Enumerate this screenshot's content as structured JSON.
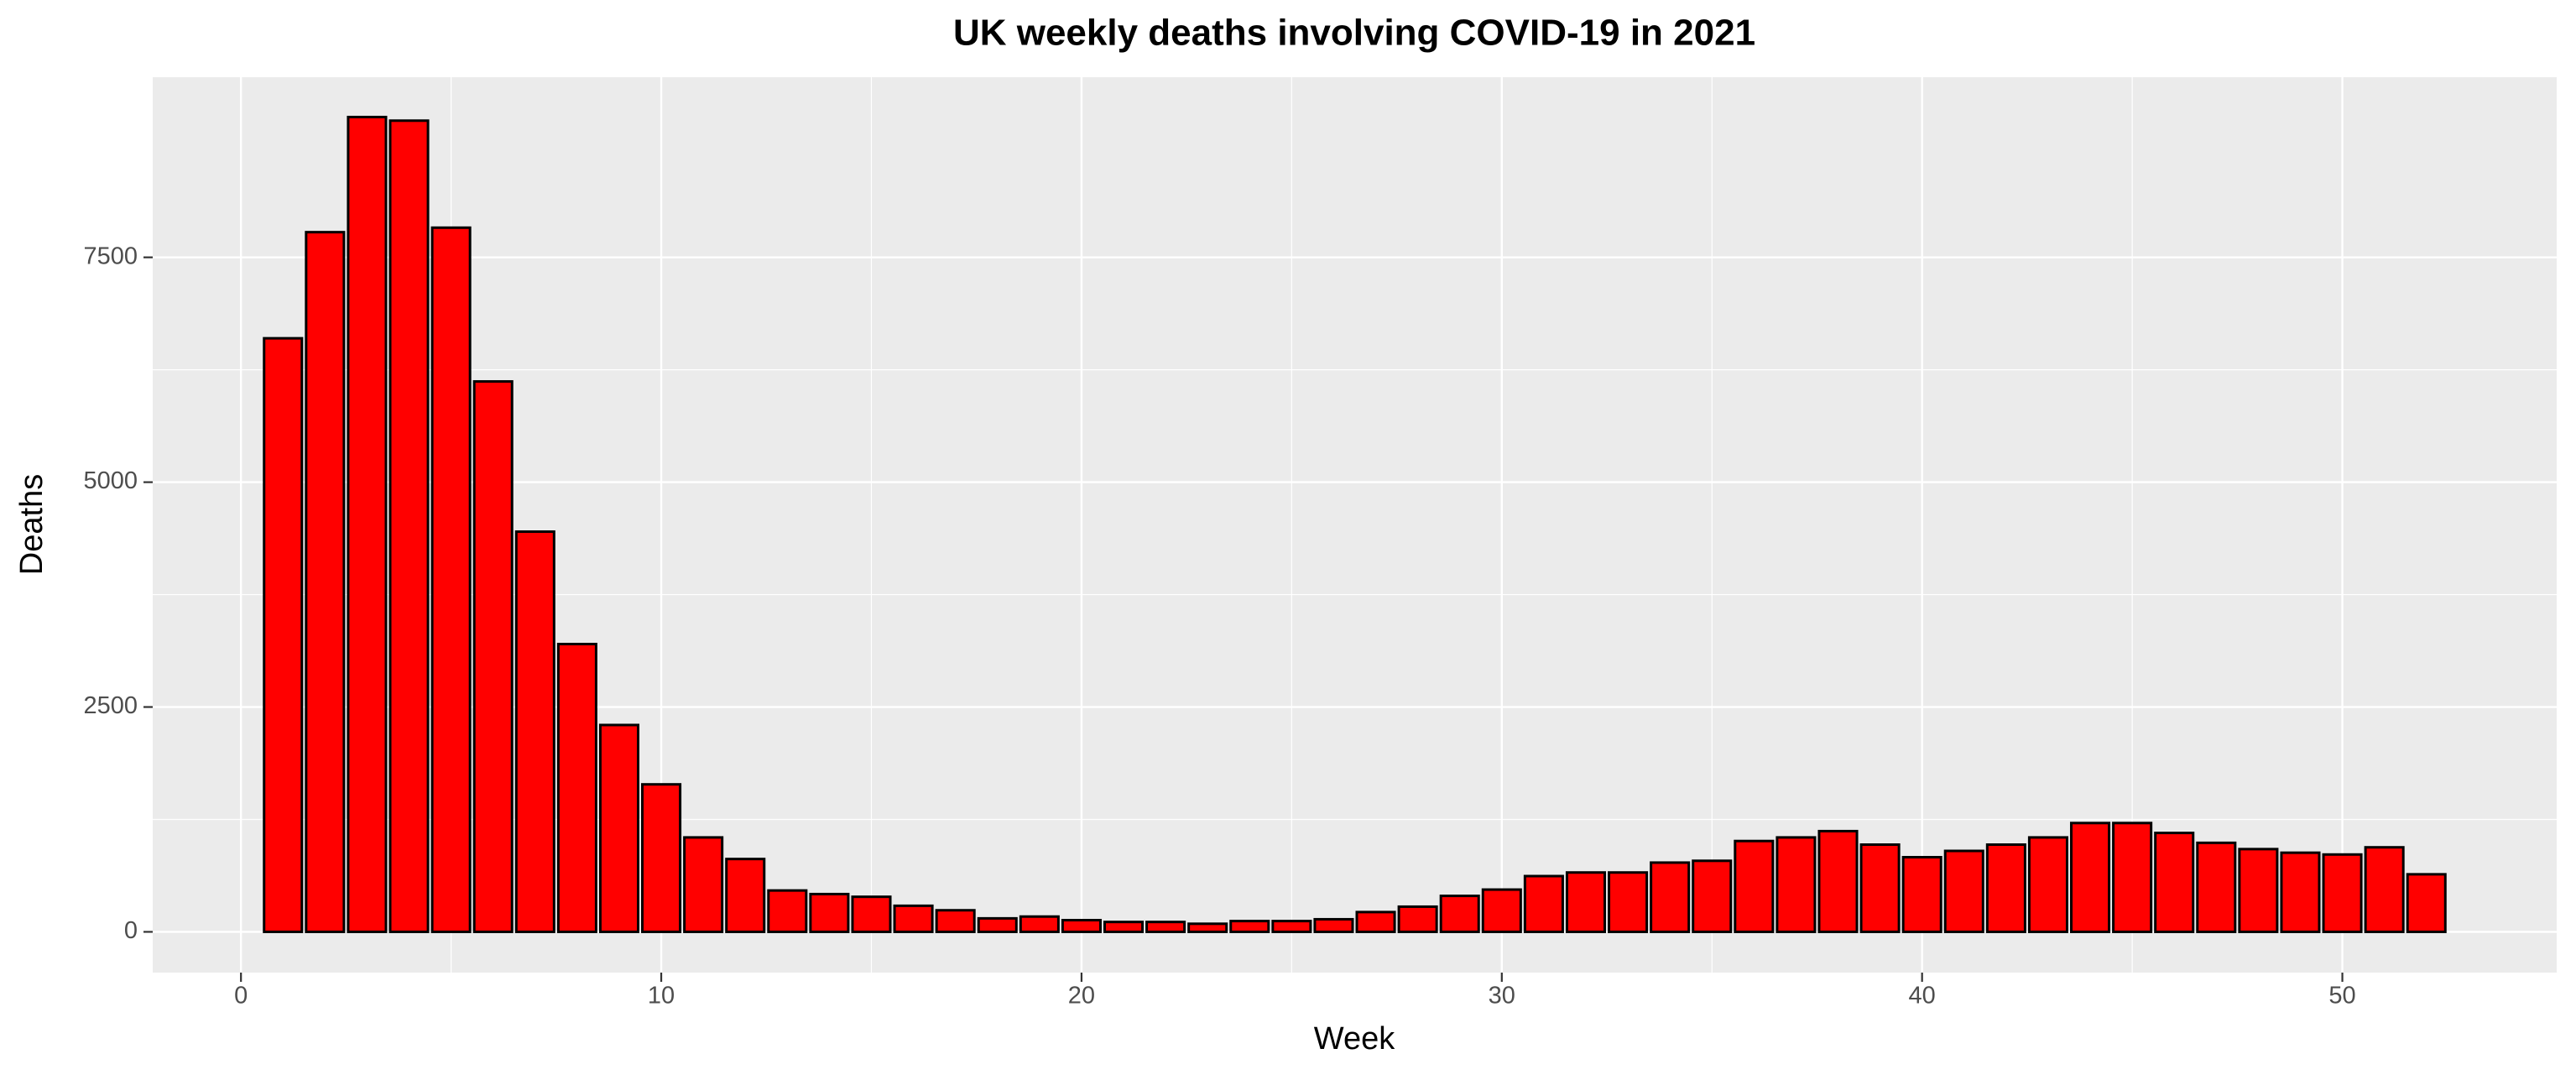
{
  "chart_data": {
    "type": "bar",
    "title": "UK weekly deaths involving COVID-19 in 2021",
    "x_label": "Week",
    "y_label": "Deaths",
    "x": [
      1,
      2,
      3,
      4,
      5,
      6,
      7,
      8,
      9,
      10,
      11,
      12,
      13,
      14,
      15,
      16,
      17,
      18,
      19,
      20,
      21,
      22,
      23,
      24,
      25,
      26,
      27,
      28,
      29,
      30,
      31,
      32,
      33,
      34,
      35,
      36,
      37,
      38,
      39,
      40,
      41,
      42,
      43,
      44,
      45,
      46,
      47,
      48,
      49,
      50,
      51,
      52
    ],
    "values": [
      6600,
      7780,
      9060,
      9020,
      7830,
      6120,
      4450,
      3200,
      2300,
      1640,
      1050,
      810,
      460,
      420,
      390,
      290,
      240,
      150,
      170,
      130,
      110,
      110,
      90,
      120,
      120,
      140,
      220,
      280,
      400,
      470,
      620,
      660,
      660,
      770,
      790,
      1010,
      1050,
      1120,
      970,
      830,
      900,
      970,
      1050,
      1210,
      1210,
      1100,
      990,
      920,
      880,
      860,
      940,
      640
    ],
    "color": "#ff0000",
    "edge_color": "#000000",
    "xlim": [
      -2.1,
      55.1
    ],
    "xticks": [
      0,
      10,
      20,
      30,
      40,
      50
    ],
    "ylim": [
      -453,
      9503
    ],
    "yticks": [
      0,
      2500,
      5000,
      7500
    ],
    "grid": true
  }
}
